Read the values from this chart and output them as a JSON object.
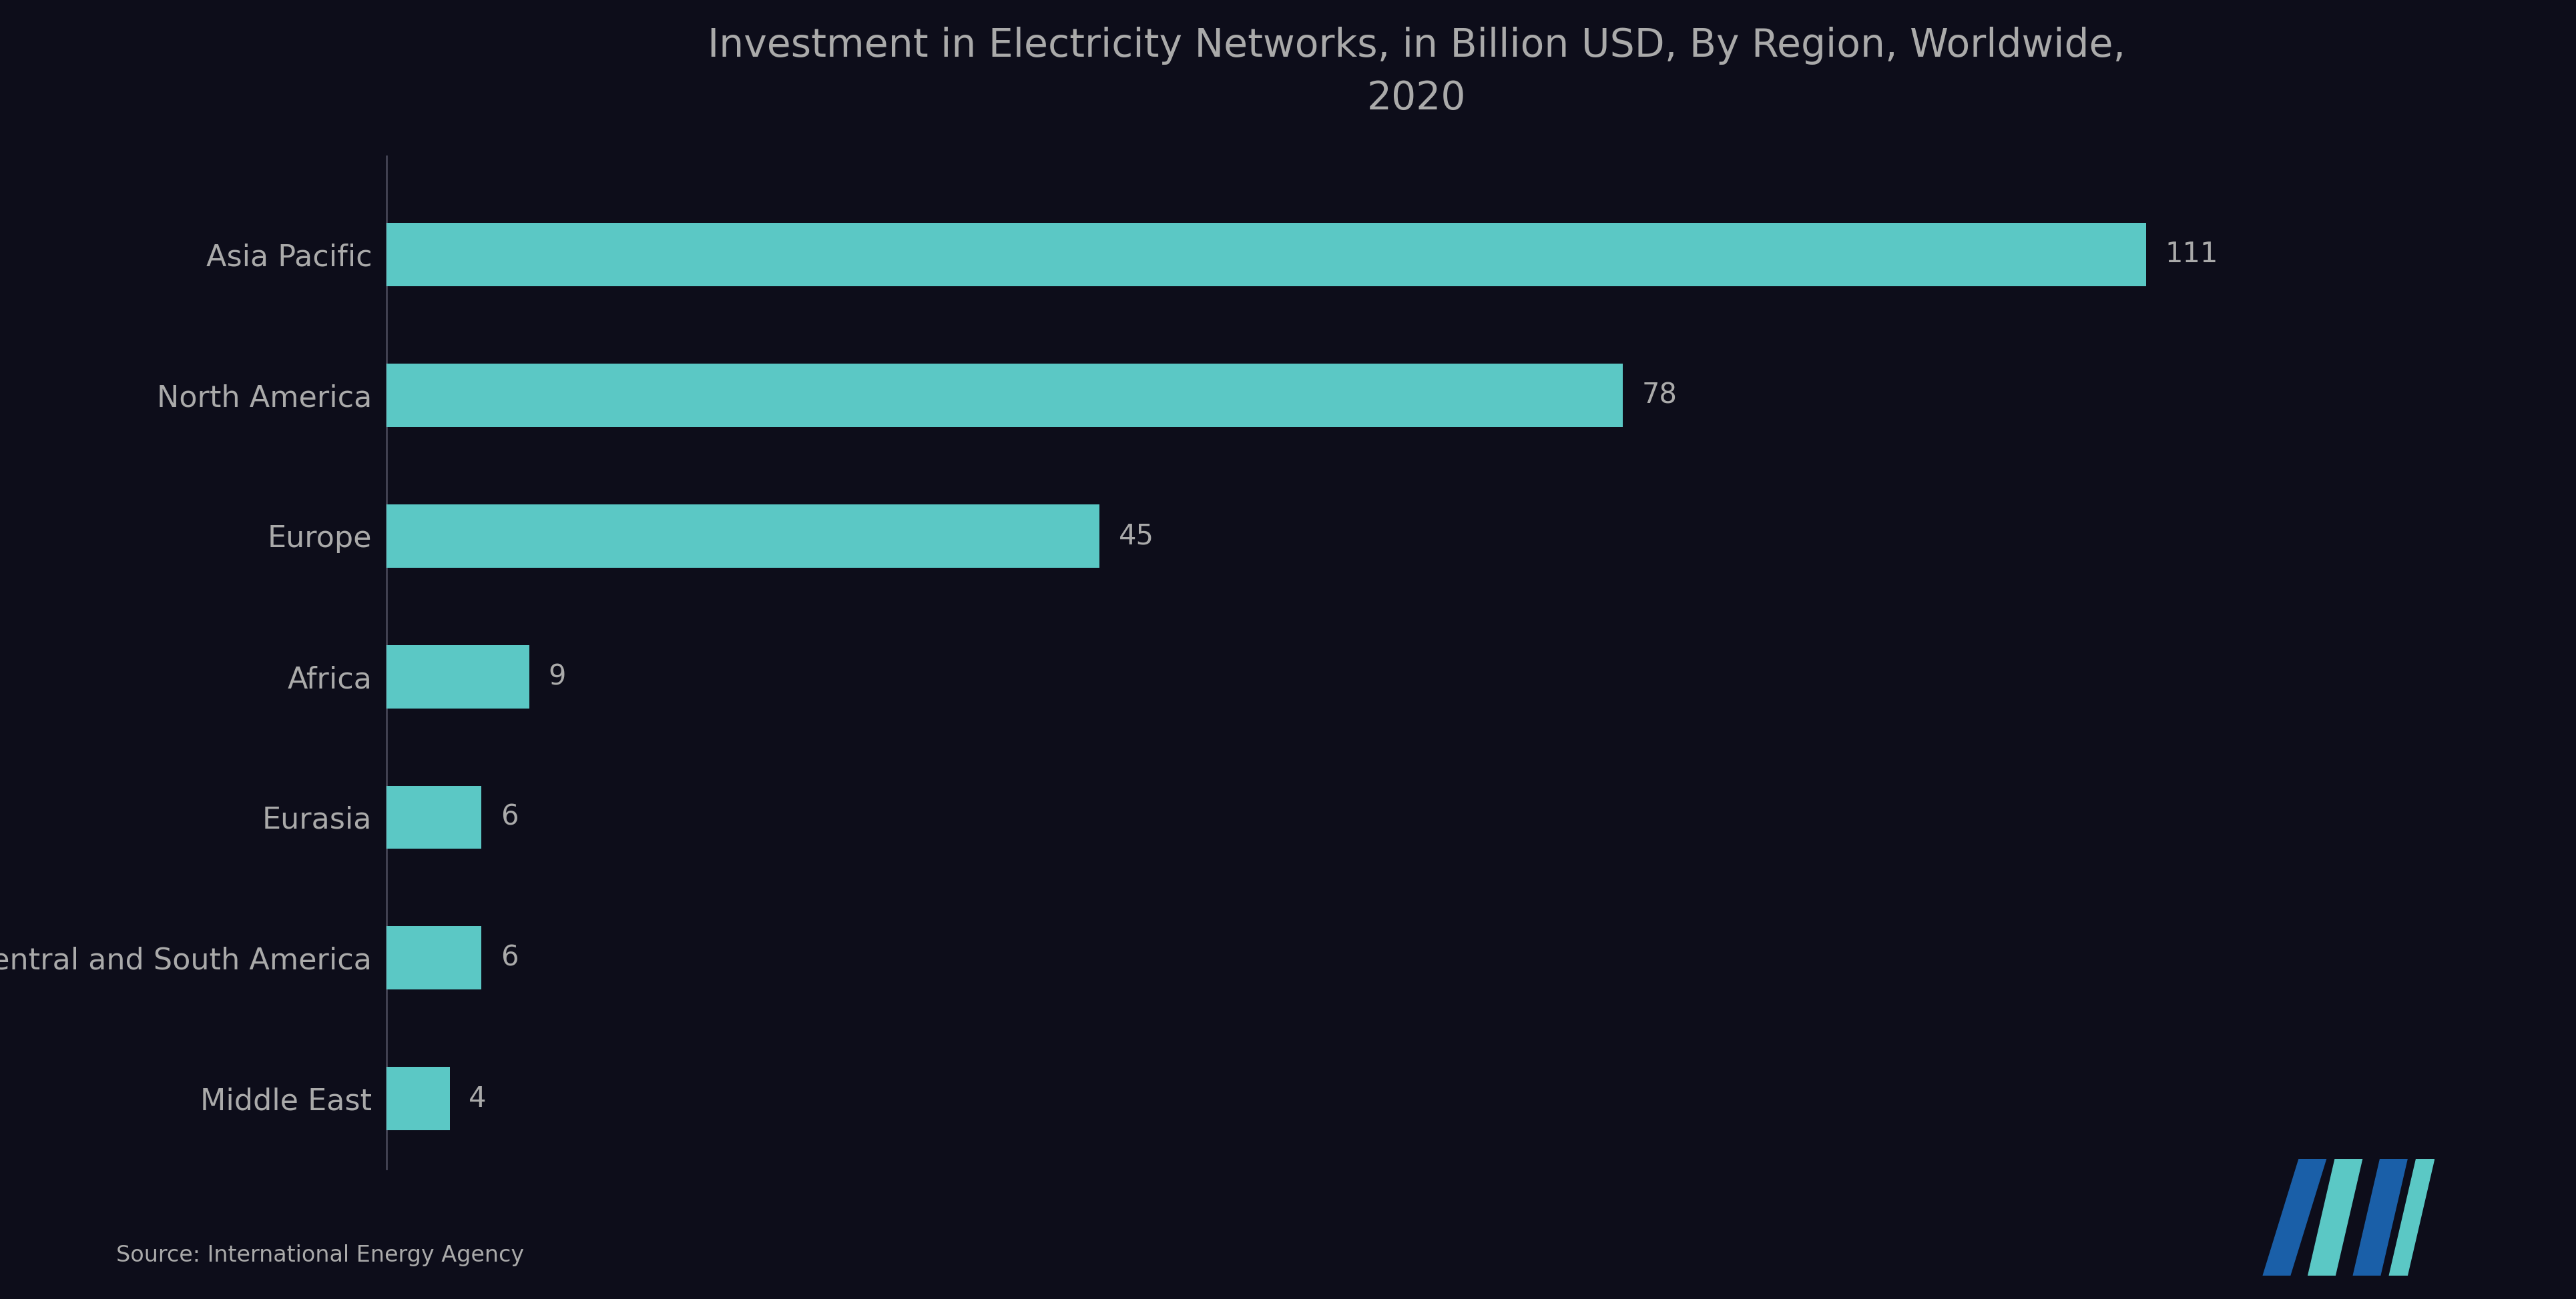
{
  "title": "Investment in Electricity Networks, in Billion USD, By Region, Worldwide,\n2020",
  "categories": [
    "Asia Pacific",
    "North America",
    "Europe",
    "Africa",
    "Eurasia",
    "Central and South America",
    "Middle East"
  ],
  "values": [
    111,
    78,
    45,
    9,
    6,
    6,
    4
  ],
  "bar_color": "#5BC8C5",
  "background_color": "#0d0d1a",
  "text_color": "#aaaaaa",
  "title_color": "#aaaaaa",
  "source_text": "Source: International Energy Agency",
  "xlim": [
    0,
    130
  ],
  "bar_height": 0.45,
  "title_fontsize": 42,
  "tick_fontsize": 32,
  "source_fontsize": 24,
  "value_fontsize": 30,
  "spine_color": "#444455",
  "fig_width": 38.59,
  "fig_height": 19.47
}
